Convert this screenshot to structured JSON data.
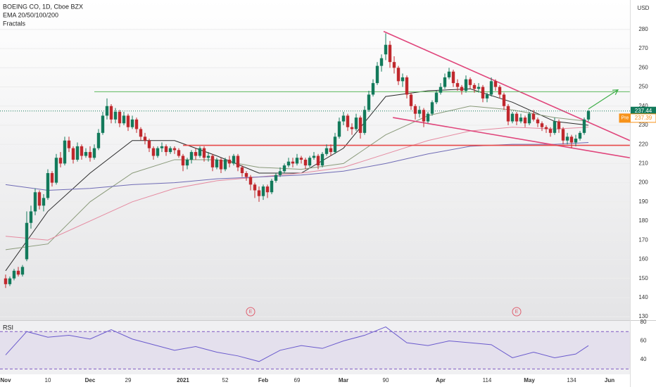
{
  "header": {
    "symbol": "BOEING CO, 1D, Cboe BZX",
    "indicators": [
      "EMA 20/50/100/200",
      "Fractals"
    ]
  },
  "chart_data": [
    {
      "type": "candlestick",
      "currency": "USD",
      "up_color": "#137a5b",
      "down_color": "#c0282d",
      "open": [
        150,
        147,
        150,
        154,
        152,
        160,
        179,
        185,
        195,
        188,
        192,
        205,
        200,
        213,
        210,
        222,
        218,
        212,
        219,
        214,
        216,
        213,
        218,
        226,
        235,
        240,
        233,
        237,
        231,
        235,
        229,
        233,
        228,
        224,
        222,
        218,
        214,
        218,
        219,
        216,
        218,
        217,
        214,
        209,
        212,
        216,
        214,
        218,
        213,
        214,
        208,
        212,
        207,
        212,
        210,
        214,
        208,
        205,
        203,
        199,
        196,
        193,
        198,
        195,
        201,
        204,
        206,
        209,
        211,
        210,
        213,
        212,
        209,
        213,
        214,
        209,
        215,
        218,
        216,
        224,
        232,
        235,
        229,
        228,
        234,
        226,
        238,
        246,
        252,
        261,
        267,
        272,
        263,
        260,
        253,
        255,
        246,
        240,
        236,
        238,
        232,
        236,
        242,
        247,
        250,
        255,
        258,
        252,
        250,
        248,
        254,
        251,
        249,
        250,
        244,
        246,
        253,
        250,
        246,
        240,
        232,
        236,
        232,
        234,
        231,
        236,
        233,
        231,
        229,
        228,
        226,
        232,
        228,
        222,
        224,
        221,
        223,
        226,
        233
      ],
      "high": [
        152,
        151,
        155,
        156,
        157,
        185,
        188,
        197,
        196,
        194,
        207,
        206,
        215,
        216,
        224,
        224,
        219,
        221,
        220,
        218,
        219,
        220,
        228,
        237,
        244,
        241,
        239,
        238,
        237,
        236,
        235,
        234,
        229,
        226,
        223,
        219,
        219,
        221,
        220,
        219,
        219,
        218,
        215,
        213,
        217,
        218,
        219,
        219,
        216,
        215,
        213,
        213,
        213,
        214,
        215,
        215,
        209,
        206,
        204,
        200,
        198,
        199,
        199,
        202,
        205,
        208,
        210,
        213,
        213,
        215,
        214,
        213,
        214,
        216,
        215,
        216,
        220,
        220,
        226,
        234,
        237,
        236,
        231,
        236,
        235,
        240,
        248,
        254,
        263,
        267,
        278,
        274,
        266,
        261,
        257,
        256,
        247,
        241,
        240,
        239,
        237,
        243,
        248,
        252,
        257,
        260,
        259,
        254,
        251,
        256,
        255,
        252,
        252,
        251,
        247,
        255,
        254,
        251,
        247,
        241,
        237,
        237,
        236,
        235,
        237,
        238,
        234,
        232,
        230,
        229,
        234,
        233,
        229,
        226,
        225,
        225,
        227,
        234,
        238
      ],
      "low": [
        145,
        146,
        149,
        151,
        151,
        159,
        176,
        183,
        186,
        185,
        191,
        198,
        199,
        208,
        209,
        216,
        210,
        211,
        212,
        213,
        211,
        212,
        217,
        225,
        233,
        231,
        231,
        229,
        230,
        227,
        228,
        226,
        222,
        220,
        216,
        212,
        213,
        216,
        214,
        215,
        215,
        213,
        206,
        207,
        210,
        212,
        213,
        211,
        211,
        206,
        207,
        205,
        206,
        208,
        209,
        206,
        203,
        201,
        196,
        192,
        190,
        191,
        192,
        194,
        200,
        203,
        205,
        208,
        208,
        209,
        210,
        207,
        208,
        212,
        207,
        208,
        214,
        214,
        215,
        223,
        230,
        227,
        225,
        227,
        223,
        225,
        237,
        245,
        251,
        258,
        264,
        260,
        257,
        251,
        250,
        244,
        238,
        233,
        234,
        229,
        231,
        235,
        241,
        246,
        249,
        254,
        250,
        248,
        246,
        247,
        249,
        247,
        247,
        242,
        242,
        245,
        248,
        244,
        238,
        230,
        231,
        230,
        231,
        229,
        230,
        232,
        229,
        227,
        226,
        224,
        225,
        226,
        220,
        220,
        218,
        219,
        222,
        225,
        232
      ],
      "close": [
        147,
        150,
        154,
        152,
        156,
        179,
        185,
        195,
        188,
        192,
        205,
        200,
        213,
        210,
        222,
        218,
        212,
        219,
        214,
        216,
        213,
        218,
        226,
        235,
        240,
        233,
        237,
        231,
        235,
        229,
        233,
        228,
        224,
        222,
        218,
        214,
        218,
        219,
        216,
        218,
        217,
        214,
        209,
        212,
        216,
        214,
        218,
        213,
        214,
        208,
        212,
        207,
        212,
        210,
        214,
        208,
        205,
        203,
        199,
        196,
        193,
        198,
        195,
        201,
        204,
        206,
        209,
        211,
        210,
        213,
        212,
        209,
        213,
        214,
        209,
        215,
        218,
        216,
        224,
        232,
        235,
        229,
        228,
        234,
        226,
        238,
        246,
        252,
        261,
        265,
        272,
        263,
        260,
        253,
        255,
        246,
        240,
        236,
        238,
        232,
        236,
        242,
        247,
        250,
        255,
        258,
        252,
        250,
        248,
        254,
        251,
        249,
        250,
        244,
        246,
        253,
        250,
        246,
        240,
        232,
        236,
        232,
        234,
        231,
        236,
        233,
        231,
        229,
        228,
        226,
        232,
        228,
        222,
        224,
        221,
        223,
        226,
        233,
        237.44
      ],
      "last_price": 237.44,
      "last_color": "#137a5b",
      "pre_market": {
        "label": "Pre",
        "value": 237.39,
        "color": "#f7931a"
      },
      "overlays": [
        {
          "color": "#2b2b2b",
          "x": [
            0,
            10,
            20,
            30,
            40,
            50,
            60,
            70,
            80,
            90,
            100,
            110,
            120,
            130,
            138
          ],
          "values": [
            154,
            185,
            205,
            222,
            222,
            214,
            205,
            205,
            218,
            245,
            248,
            249,
            242,
            232,
            230
          ]
        },
        {
          "color": "#8a9a7a",
          "x": [
            0,
            10,
            20,
            30,
            40,
            50,
            60,
            70,
            80,
            90,
            100,
            110,
            120,
            130,
            138
          ],
          "values": [
            165,
            168,
            190,
            205,
            212,
            212,
            208,
            207,
            210,
            225,
            235,
            240,
            238,
            234,
            232
          ]
        },
        {
          "color": "#e58aa0",
          "x": [
            0,
            10,
            20,
            30,
            40,
            50,
            60,
            70,
            80,
            90,
            100,
            110,
            120,
            130,
            138
          ],
          "values": [
            172,
            170,
            180,
            190,
            197,
            201,
            203,
            205,
            208,
            215,
            222,
            227,
            229,
            228,
            229
          ]
        },
        {
          "color": "#6f6bb5",
          "x": [
            0,
            10,
            20,
            30,
            40,
            50,
            60,
            70,
            80,
            90,
            100,
            110,
            120,
            130,
            138
          ],
          "values": [
            199,
            196,
            197,
            199,
            200,
            202,
            203,
            204,
            206,
            210,
            215,
            219,
            220,
            220,
            221
          ]
        }
      ],
      "lines": [
        {
          "color": "#e0457b",
          "from": [
            89.5,
            279
          ],
          "to": [
            147.8,
            222
          ]
        },
        {
          "color": "#e0457b",
          "from": [
            91.7,
            234
          ],
          "to": [
            147.8,
            213
          ]
        },
        {
          "color": "#e84a4a",
          "from": [
            42,
            219.5
          ],
          "to": [
            147.8,
            219.5
          ]
        },
        {
          "color": "#5cb85c",
          "from": [
            21,
            247.5
          ],
          "to": [
            147.8,
            247.5
          ]
        }
      ],
      "arrow": {
        "color": "#3fae49",
        "from": [
          138,
          238.5
        ],
        "to": [
          145,
          248.5
        ]
      },
      "event_markers": [
        {
          "label": "E",
          "x": 58
        },
        {
          "label": "E",
          "x": 121
        }
      ],
      "xlim": [
        -1.33,
        147.83
      ],
      "ylim": [
        128.2,
        295.4
      ],
      "yticks": [
        130,
        140,
        150,
        160,
        170,
        180,
        190,
        200,
        210,
        220,
        230,
        240,
        250,
        260,
        270,
        280
      ]
    },
    {
      "type": "line",
      "title": "RSI",
      "color": "#6a5acd",
      "x": [
        0,
        5,
        10,
        15,
        20,
        25,
        30,
        35,
        40,
        45,
        50,
        55,
        60,
        65,
        70,
        75,
        80,
        85,
        90,
        95,
        100,
        105,
        110,
        115,
        120,
        125,
        130,
        135,
        138
      ],
      "values": [
        45,
        70,
        64,
        66,
        62,
        72,
        62,
        56,
        50,
        54,
        48,
        44,
        38,
        50,
        55,
        52,
        60,
        66,
        75,
        58,
        55,
        60,
        58,
        56,
        42,
        48,
        42,
        46,
        55
      ],
      "bands": [
        30,
        70
      ],
      "band_color": "#7e57c2",
      "xlim": [
        -1.33,
        147.83
      ],
      "ylim": [
        24.3,
        82.2
      ],
      "yticks": [
        40,
        60,
        80
      ],
      "xticks": [
        {
          "value": 0,
          "label": "Nov"
        },
        10,
        {
          "value": 20,
          "label": "Dec"
        },
        29,
        {
          "value": 42,
          "label": "2021"
        },
        52,
        {
          "value": 61,
          "label": "Feb"
        },
        69,
        {
          "value": 80,
          "label": "Mar"
        },
        90,
        {
          "value": 103,
          "label": "Apr"
        },
        114,
        {
          "value": 124,
          "label": "May"
        },
        134,
        {
          "value": 143,
          "label": "Jun"
        }
      ]
    }
  ]
}
